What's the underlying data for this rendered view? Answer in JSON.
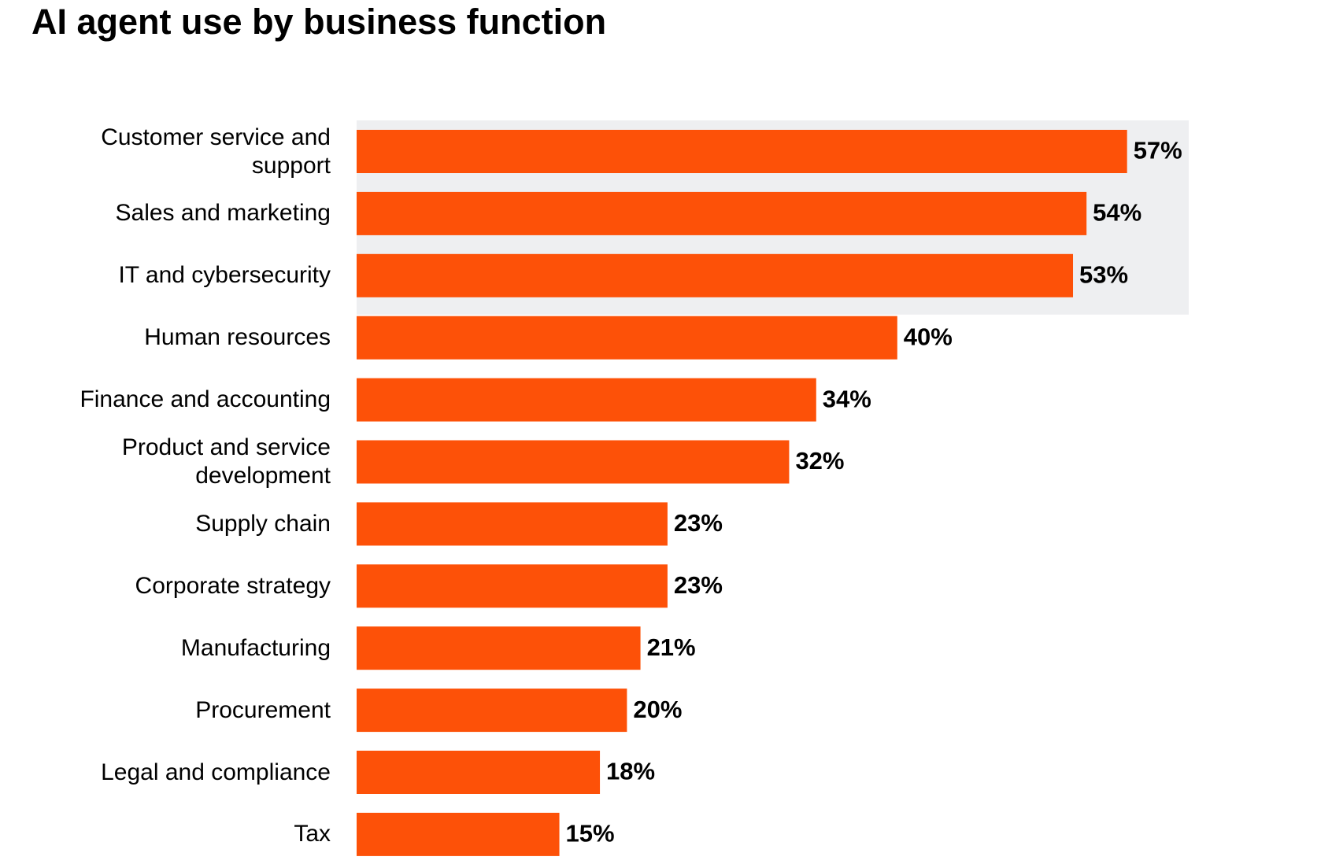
{
  "chart_data": {
    "type": "hbar",
    "title": "AI agent use by business function",
    "categories": [
      "Customer service and support",
      "Sales and marketing",
      "IT and cybersecurity",
      "Human resources",
      "Finance and accounting",
      "Product and service development",
      "Supply chain",
      "Corporate strategy",
      "Manufacturing",
      "Procurement",
      "Legal and compliance",
      "Tax"
    ],
    "values": [
      57,
      54,
      53,
      40,
      34,
      32,
      23,
      23,
      21,
      20,
      18,
      15
    ],
    "value_labels": [
      "57%",
      "54%",
      "53%",
      "40%",
      "34%",
      "32%",
      "23%",
      "23%",
      "21%",
      "20%",
      "18%",
      "15%"
    ],
    "color": "#fd5108",
    "highlight_color": "#eeeff1",
    "highlight_count": 3
  }
}
